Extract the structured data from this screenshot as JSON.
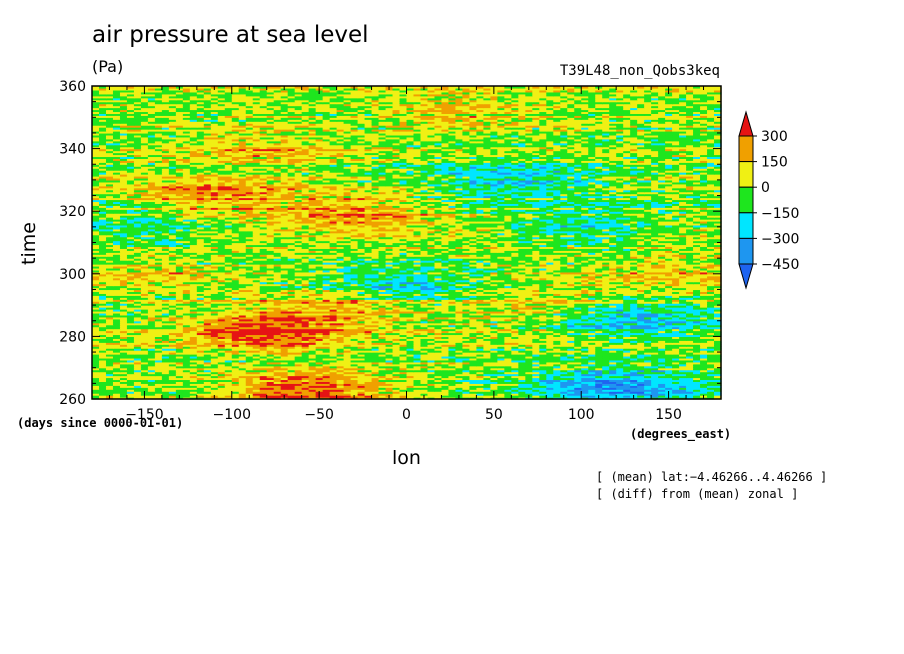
{
  "chart_data": {
    "type": "heatmap",
    "title": "air pressure at sea level",
    "units": "(Pa)",
    "run_name": "T39L48_non_Qobs3keq",
    "xlabel": "lon",
    "x_units": "(degrees_east)",
    "ylabel": "time",
    "y_units": "(days since 0000-01-01)",
    "xlim": [
      -180,
      180
    ],
    "ylim": [
      260,
      360
    ],
    "x_ticks": [
      -150,
      -100,
      -50,
      0,
      50,
      100,
      150
    ],
    "y_ticks": [
      260,
      280,
      300,
      320,
      340,
      360
    ],
    "colorbar": {
      "levels": [
        -450,
        -300,
        -150,
        0,
        150,
        300
      ],
      "label_levels": [
        "300",
        "150",
        "0",
        "−150",
        "−300",
        "−450"
      ],
      "colors": [
        "#1e64f0",
        "#1e96f0",
        "#00e6ff",
        "#1ee61e",
        "#f0f014",
        "#f0a000",
        "#e61414"
      ],
      "extend": "both"
    },
    "anomaly_patches": [
      {
        "lon": -55,
        "time": 263,
        "value": 380
      },
      {
        "lon": -80,
        "time": 282,
        "value": 350
      },
      {
        "lon": -35,
        "time": 290,
        "value": 220
      },
      {
        "lon": -110,
        "time": 325,
        "value": 260
      },
      {
        "lon": -30,
        "time": 320,
        "value": 240
      },
      {
        "lon": -80,
        "time": 340,
        "value": 180
      },
      {
        "lon": 30,
        "time": 352,
        "value": 150
      },
      {
        "lon": -150,
        "time": 300,
        "value": 130
      },
      {
        "lon": 120,
        "time": 264,
        "value": -380
      },
      {
        "lon": 130,
        "time": 285,
        "value": -300
      },
      {
        "lon": 60,
        "time": 330,
        "value": -260
      },
      {
        "lon": 100,
        "time": 315,
        "value": -220
      },
      {
        "lon": -150,
        "time": 315,
        "value": -180
      },
      {
        "lon": -5,
        "time": 296,
        "value": -260
      },
      {
        "lon": 150,
        "time": 300,
        "value": 140
      },
      {
        "lon": 70,
        "time": 290,
        "value": 130
      }
    ]
  },
  "notes": [
    "[ (mean) lat:−4.46266..4.46266 ]",
    "[ (diff) from (mean) zonal ]"
  ]
}
